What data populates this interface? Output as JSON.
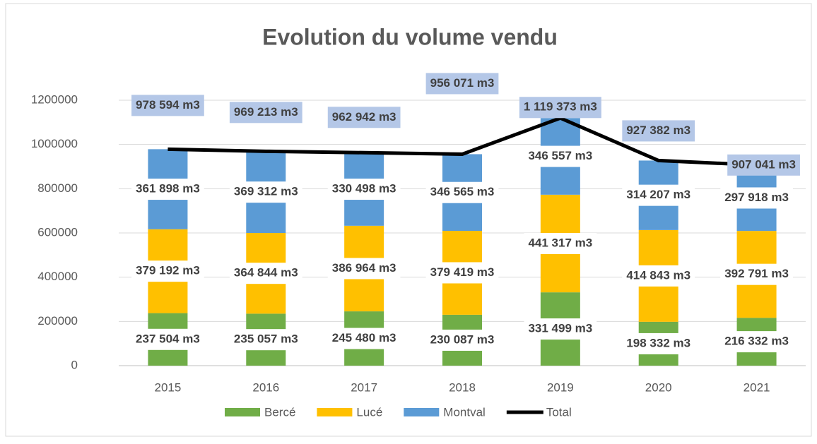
{
  "chart_data": {
    "type": "bar",
    "stacked": true,
    "title": "Evolution du volume vendu",
    "categories": [
      "2015",
      "2016",
      "2017",
      "2018",
      "2019",
      "2020",
      "2021"
    ],
    "ylim": [
      0,
      1200000
    ],
    "yticks": [
      0,
      200000,
      400000,
      600000,
      800000,
      1000000,
      1200000
    ],
    "grid": true,
    "legend": "bottom",
    "series": [
      {
        "name": "Bercé",
        "color": "#70ad47",
        "values": [
          237504,
          235057,
          245480,
          230087,
          331499,
          198332,
          216332
        ],
        "value_labels": [
          "237 504 m3",
          "235 057 m3",
          "245 480 m3",
          "230 087 m3",
          "331 499 m3",
          "198 332 m3",
          "216 332 m3"
        ]
      },
      {
        "name": "Lucé",
        "color": "#ffc000",
        "values": [
          379192,
          364844,
          386964,
          379419,
          441317,
          414843,
          392791
        ],
        "value_labels": [
          "379 192 m3",
          "364 844 m3",
          "386 964 m3",
          "379 419 m3",
          "441 317 m3",
          "414 843 m3",
          "392 791 m3"
        ]
      },
      {
        "name": "Montval",
        "color": "#5b9bd5",
        "values": [
          361898,
          369312,
          330498,
          346565,
          346557,
          314207,
          297918
        ],
        "value_labels": [
          "361 898 m3",
          "369 312 m3",
          "330 498 m3",
          "346 565 m3",
          "346 557 m3",
          "314 207 m3",
          "297 918 m3"
        ]
      },
      {
        "name": "Total",
        "type": "line",
        "color": "#000000",
        "values": [
          978594,
          969213,
          962942,
          956071,
          1119373,
          927382,
          907041
        ],
        "value_labels": [
          "978 594 m3",
          "969 213 m3",
          "962 942 m3",
          "956 071 m3",
          "1 119 373 m3",
          "927 382 m3",
          "907 041 m3"
        ]
      }
    ]
  }
}
